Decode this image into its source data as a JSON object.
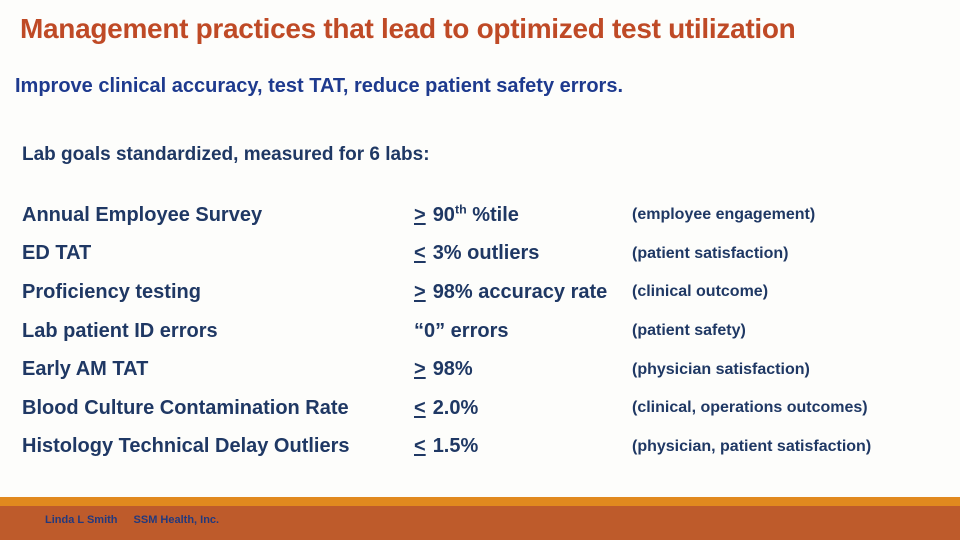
{
  "slide": {
    "title": "Management practices that lead to optimized test utilization",
    "subtitle": "Improve clinical accuracy, test TAT, reduce patient safety errors.",
    "section_header": "Lab goals standardized, measured for 6 labs:"
  },
  "rows": [
    {
      "label": "Annual Employee Survey",
      "op": ">",
      "value": "90",
      "sup": "th",
      "value_suffix": " %tile",
      "note": "(employee engagement)"
    },
    {
      "label": "ED TAT",
      "op": "<",
      "value": "3% outliers",
      "note": "(patient satisfaction)"
    },
    {
      "label": "Proficiency testing",
      "op": ">",
      "value": "98% accuracy rate",
      "note": "(clinical outcome)"
    },
    {
      "label": "Lab patient ID errors",
      "op": "",
      "value": "“0” errors",
      "note": "(patient safety)"
    },
    {
      "label": "Early AM TAT",
      "op": ">",
      "value": "98%",
      "note": "(physician satisfaction)"
    },
    {
      "label": "Blood Culture Contamination Rate",
      "op": "<",
      "value": "2.0%",
      "note": "(clinical, operations outcomes)"
    },
    {
      "label": "Histology Technical Delay Outliers",
      "op": "<",
      "value": "1.5%",
      "note": "(physician, patient satisfaction)"
    }
  ],
  "footer": {
    "author": "Linda L Smith",
    "org": "SSM Health, Inc."
  },
  "colors": {
    "title_text": "#bf4a26",
    "subtitle_text": "#1e3a8e",
    "body_text": "#1f3864",
    "footer_stripe": "#e1891e",
    "footer_band": "#be5b2b",
    "footer_text": "#23397d",
    "background": "#fdfdfb"
  }
}
